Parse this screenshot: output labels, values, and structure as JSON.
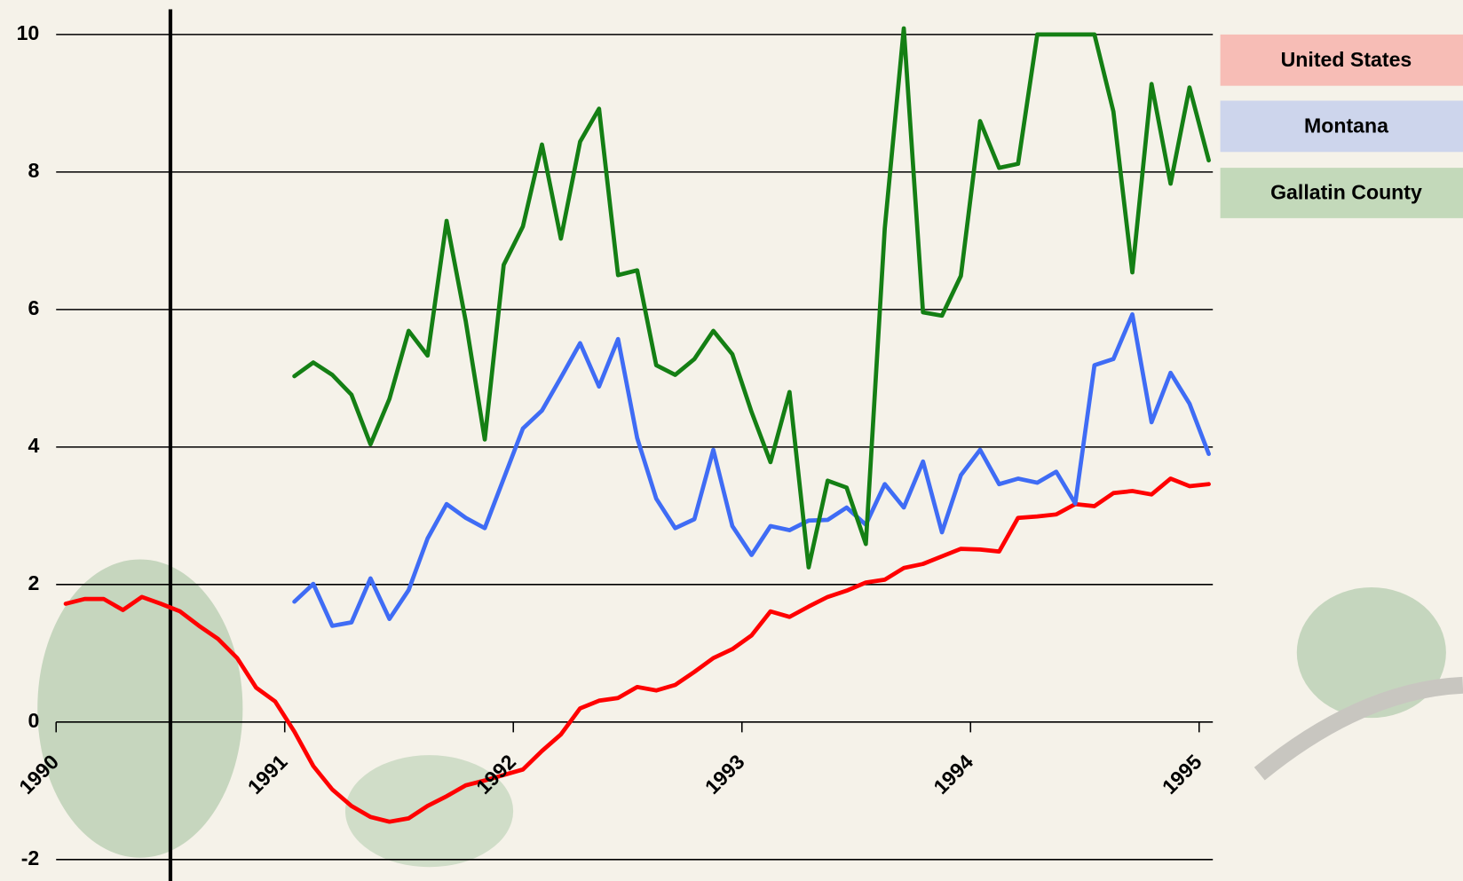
{
  "chart_data": {
    "type": "line",
    "x": [
      1990.042,
      1990.125,
      1990.208,
      1990.292,
      1990.375,
      1990.458,
      1990.542,
      1990.625,
      1990.708,
      1990.792,
      1990.875,
      1990.958,
      1991.042,
      1991.125,
      1991.208,
      1991.292,
      1991.375,
      1991.458,
      1991.542,
      1991.625,
      1991.708,
      1991.792,
      1991.875,
      1991.958,
      1992.042,
      1992.125,
      1992.208,
      1992.292,
      1992.375,
      1992.458,
      1992.542,
      1992.625,
      1992.708,
      1992.792,
      1992.875,
      1992.958,
      1993.042,
      1993.125,
      1993.208,
      1993.292,
      1993.375,
      1993.458,
      1993.542,
      1993.625,
      1993.708,
      1993.792,
      1993.875,
      1993.958,
      1994.042,
      1994.125,
      1994.208,
      1994.292,
      1994.375,
      1994.458,
      1994.542,
      1994.625,
      1994.708,
      1994.792,
      1994.875,
      1994.958,
      1995.042
    ],
    "series": [
      {
        "name": "United States",
        "color": "#ff0000",
        "values": [
          1.72,
          1.79,
          1.79,
          1.63,
          1.82,
          1.72,
          1.61,
          1.4,
          1.21,
          0.93,
          0.5,
          0.3,
          -0.14,
          -0.64,
          -0.98,
          -1.22,
          -1.38,
          -1.45,
          -1.4,
          -1.22,
          -1.08,
          -0.92,
          -0.85,
          -0.77,
          -0.69,
          -0.42,
          -0.18,
          0.2,
          0.31,
          0.35,
          0.51,
          0.46,
          0.54,
          0.73,
          0.93,
          1.06,
          1.26,
          1.61,
          1.53,
          1.68,
          1.82,
          1.91,
          2.03,
          2.07,
          2.24,
          2.3,
          2.41,
          2.52,
          2.51,
          2.48,
          2.97,
          2.99,
          3.02,
          3.17,
          3.14,
          3.33,
          3.36,
          3.31,
          3.54,
          3.43,
          3.46
        ]
      },
      {
        "name": "Montana",
        "color": "#3f6cf5",
        "values": [
          null,
          null,
          null,
          null,
          null,
          null,
          null,
          null,
          null,
          null,
          null,
          null,
          1.75,
          2.01,
          1.4,
          1.45,
          2.09,
          1.5,
          1.92,
          2.67,
          3.17,
          2.97,
          2.82,
          3.54,
          4.27,
          4.53,
          5.01,
          5.51,
          4.88,
          5.57,
          4.13,
          3.25,
          2.82,
          2.95,
          3.96,
          2.85,
          2.43,
          2.85,
          2.79,
          2.93,
          2.94,
          3.12,
          2.87,
          3.46,
          3.12,
          3.79,
          2.76,
          3.59,
          3.96,
          3.46,
          3.54,
          3.48,
          3.64,
          3.18,
          5.19,
          5.28,
          5.93,
          4.36,
          5.08,
          4.63,
          3.9
        ]
      },
      {
        "name": "Gallatin County",
        "color": "#147f14",
        "values": [
          null,
          null,
          null,
          null,
          null,
          null,
          null,
          null,
          null,
          null,
          null,
          null,
          5.03,
          5.23,
          5.05,
          4.76,
          4.04,
          4.7,
          5.69,
          5.33,
          7.29,
          5.83,
          4.11,
          6.65,
          7.21,
          8.4,
          7.03,
          8.44,
          8.92,
          6.5,
          6.57,
          5.19,
          5.05,
          5.28,
          5.69,
          5.35,
          4.51,
          3.78,
          4.8,
          2.25,
          3.51,
          3.41,
          2.59,
          7.18,
          10.09,
          5.96,
          5.91,
          6.49,
          8.74,
          8.06,
          8.12,
          10,
          10,
          10,
          10,
          8.88,
          6.54,
          9.28,
          7.83,
          9.23,
          8.17
        ]
      }
    ],
    "xlim": [
      1990,
      1995.06
    ],
    "xticks": [
      1990,
      1991,
      1992,
      1993,
      1994,
      1995
    ],
    "ylim": [
      -2,
      10
    ],
    "yticks": [
      -2,
      0,
      2,
      4,
      6,
      8,
      10
    ],
    "grid": true,
    "marker_x": 1990.5,
    "legend": "right"
  }
}
